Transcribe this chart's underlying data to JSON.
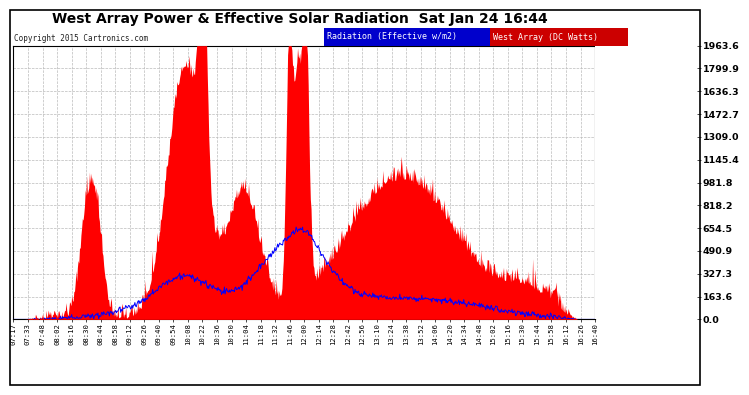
{
  "title": "West Array Power & Effective Solar Radiation  Sat Jan 24 16:44",
  "copyright": "Copyright 2015 Cartronics.com",
  "legend_labels": [
    "Radiation (Effective w/m2)",
    "West Array (DC Watts)"
  ],
  "legend_colors": [
    "#0000ff",
    "#ff0000"
  ],
  "y_ticks": [
    0.0,
    163.6,
    327.3,
    490.9,
    654.5,
    818.2,
    981.8,
    1145.4,
    1309.0,
    1472.7,
    1636.3,
    1799.9,
    1963.6
  ],
  "ymax": 1963.6,
  "ymin": 0.0,
  "background_color": "#ffffff",
  "plot_bg_color": "#ffffff",
  "grid_color": "#bbbbbb",
  "fill_color": "#ff0000",
  "line_color": "#0000ff",
  "x_labels": [
    "07:17",
    "07:33",
    "07:48",
    "08:02",
    "08:16",
    "08:30",
    "08:44",
    "08:58",
    "09:12",
    "09:26",
    "09:40",
    "09:54",
    "10:08",
    "10:22",
    "10:36",
    "10:50",
    "11:04",
    "11:18",
    "11:32",
    "11:46",
    "12:00",
    "12:14",
    "12:28",
    "12:42",
    "12:56",
    "13:10",
    "13:24",
    "13:38",
    "13:52",
    "14:06",
    "14:20",
    "14:34",
    "14:48",
    "15:02",
    "15:16",
    "15:30",
    "15:44",
    "15:58",
    "16:12",
    "16:26",
    "16:40"
  ]
}
